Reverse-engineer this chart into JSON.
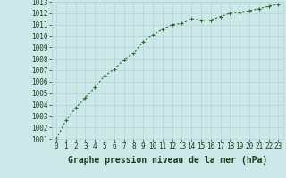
{
  "x": [
    0,
    1,
    2,
    3,
    4,
    5,
    6,
    7,
    8,
    9,
    10,
    11,
    12,
    13,
    14,
    15,
    16,
    17,
    18,
    19,
    20,
    21,
    22,
    23
  ],
  "y": [
    1001.0,
    1002.6,
    1003.7,
    1004.6,
    1005.5,
    1006.5,
    1007.1,
    1007.9,
    1008.5,
    1009.5,
    1010.1,
    1010.6,
    1011.0,
    1011.1,
    1011.5,
    1011.4,
    1011.4,
    1011.7,
    1012.0,
    1012.1,
    1012.2,
    1012.4,
    1012.6,
    1012.8
  ],
  "line_color": "#2d6a2d",
  "marker": "+",
  "bg_color": "#cce8e8",
  "grid_color": "#b0d4d4",
  "xlabel": "Graphe pression niveau de la mer (hPa)",
  "xlabel_color": "#1a3a1a",
  "ylim": [
    1001,
    1013
  ],
  "xlim_min": -0.5,
  "xlim_max": 23.5,
  "yticks": [
    1001,
    1002,
    1003,
    1004,
    1005,
    1006,
    1007,
    1008,
    1009,
    1010,
    1011,
    1012,
    1013
  ],
  "xticks": [
    0,
    1,
    2,
    3,
    4,
    5,
    6,
    7,
    8,
    9,
    10,
    11,
    12,
    13,
    14,
    15,
    16,
    17,
    18,
    19,
    20,
    21,
    22,
    23
  ],
  "tick_label_color": "#1a3a1a",
  "tick_label_fontsize": 5.5,
  "xlabel_fontsize": 7.0,
  "line_width": 0.8,
  "marker_size": 3.5
}
